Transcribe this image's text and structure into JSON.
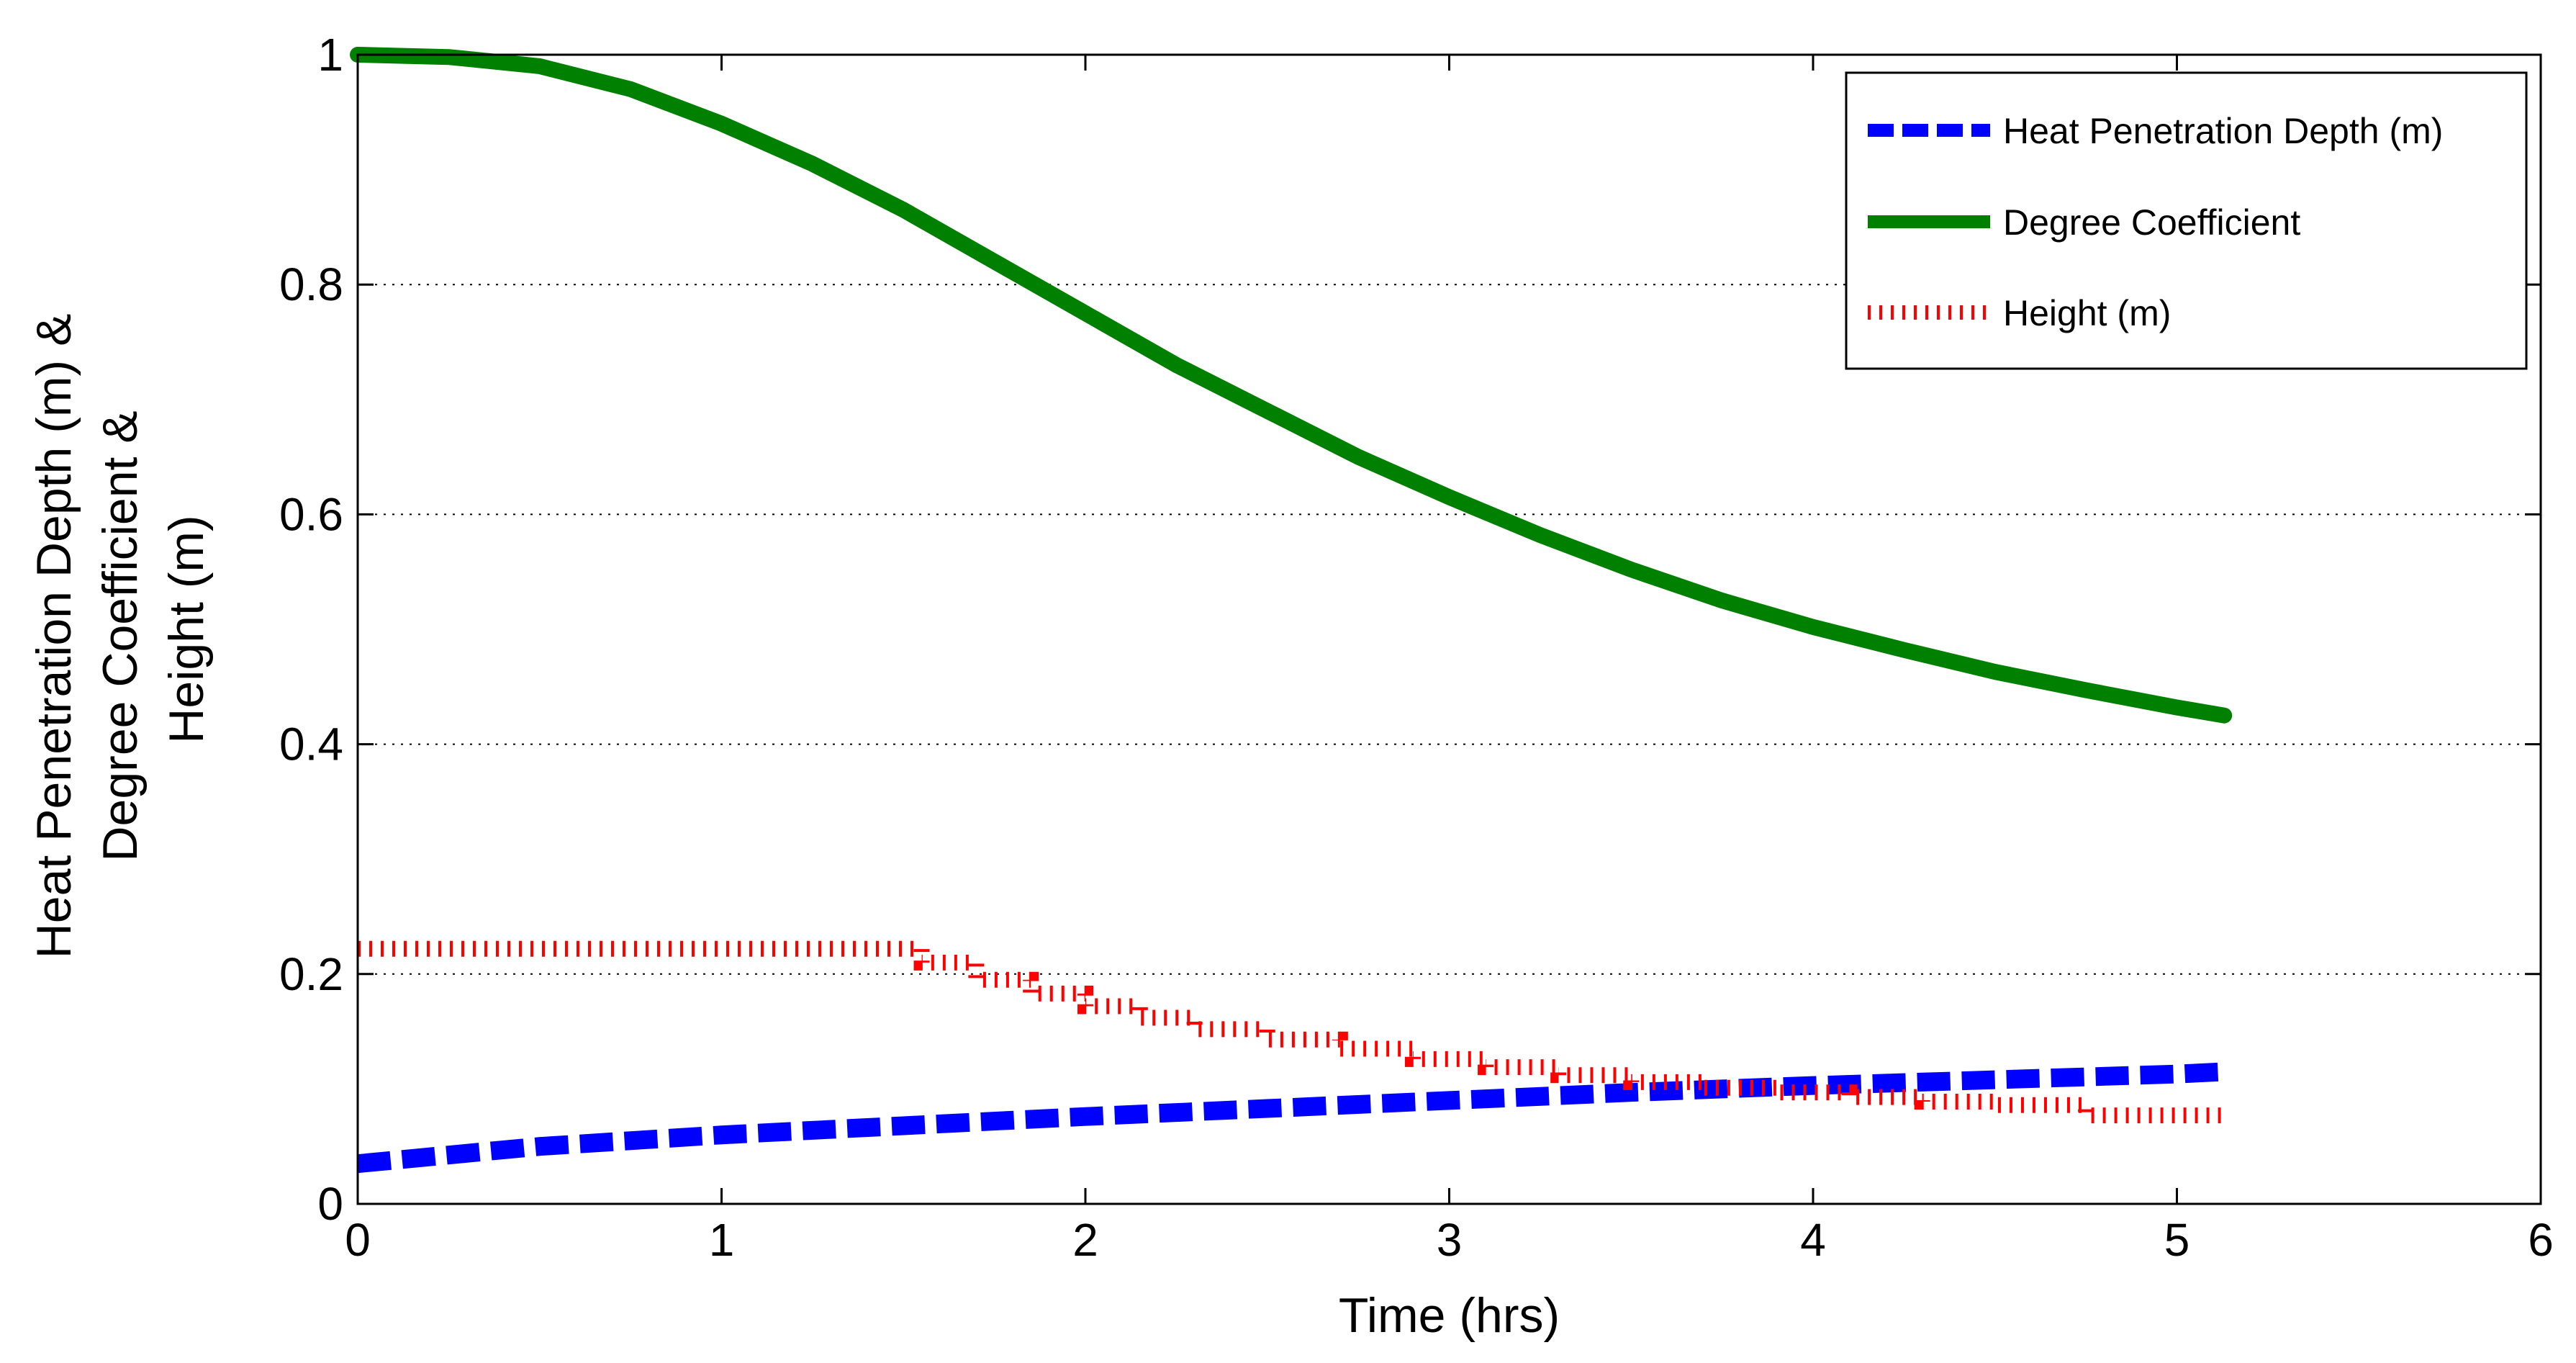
{
  "chart_data": {
    "type": "line",
    "title": "",
    "xlabel": "Time (hrs)",
    "ylabel_lines": [
      "Heat Penetration Depth (m) &",
      "Degree Coefficient &",
      "Height (m)"
    ],
    "xlim": [
      0,
      6
    ],
    "ylim": [
      0,
      1
    ],
    "xticks": [
      0,
      1,
      2,
      3,
      4,
      5,
      6
    ],
    "xtick_labels": [
      "0",
      "1",
      "2",
      "3",
      "4",
      "5",
      "6"
    ],
    "yticks": [
      0,
      0.2,
      0.4,
      0.6,
      0.8,
      1
    ],
    "ytick_labels": [
      "0",
      "0.2",
      "0.4",
      "0.6",
      "0.8",
      "1"
    ],
    "grid": "horizontal dotted",
    "legend_position": "top-right",
    "series": [
      {
        "name": "Heat Penetration Depth (m)",
        "color": "#0000ff",
        "style": "dashed",
        "x": [
          0,
          0.5,
          1,
          1.5,
          2,
          2.5,
          3,
          3.5,
          4,
          4.5,
          5,
          5.13
        ],
        "y": [
          0.035,
          0.05,
          0.06,
          0.068,
          0.076,
          0.083,
          0.09,
          0.097,
          0.103,
          0.108,
          0.113,
          0.115
        ]
      },
      {
        "name": "Degree Coefficient",
        "color": "#008000",
        "style": "solid",
        "x": [
          0,
          0.25,
          0.5,
          0.75,
          1,
          1.25,
          1.5,
          1.75,
          2,
          2.25,
          2.5,
          2.75,
          3,
          3.25,
          3.5,
          3.75,
          4,
          4.25,
          4.5,
          4.75,
          5,
          5.13
        ],
        "y": [
          1.0,
          0.998,
          0.99,
          0.97,
          0.94,
          0.905,
          0.865,
          0.82,
          0.775,
          0.73,
          0.69,
          0.65,
          0.615,
          0.582,
          0.552,
          0.525,
          0.502,
          0.482,
          0.463,
          0.447,
          0.432,
          0.425
        ]
      },
      {
        "name": "Height (m)",
        "color": "#ff0000",
        "style": "dotted-step",
        "x": [
          0,
          1.5,
          1.55,
          1.7,
          1.85,
          2.0,
          2.15,
          2.3,
          2.5,
          2.7,
          2.9,
          3.1,
          3.3,
          3.5,
          3.7,
          3.9,
          4.1,
          4.3,
          4.5,
          4.75,
          5.13
        ],
        "y": [
          0.222,
          0.222,
          0.21,
          0.195,
          0.183,
          0.172,
          0.162,
          0.152,
          0.143,
          0.135,
          0.126,
          0.119,
          0.112,
          0.106,
          0.101,
          0.097,
          0.093,
          0.089,
          0.086,
          0.077,
          0.077
        ]
      }
    ]
  }
}
